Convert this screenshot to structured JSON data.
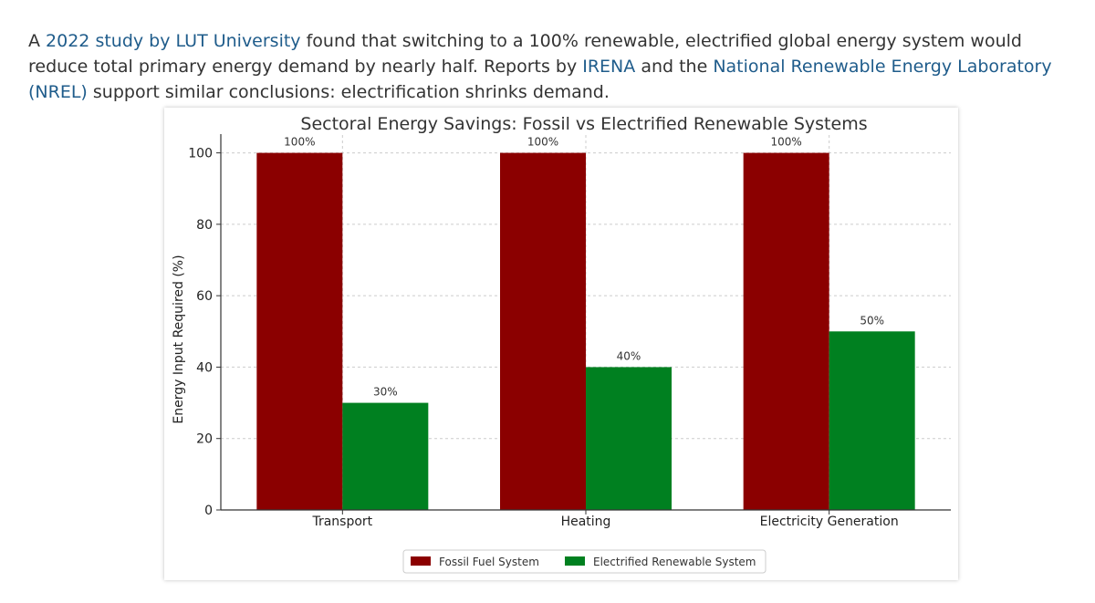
{
  "paragraph": {
    "t1": "A ",
    "link1": "2022 study by LUT University",
    "t2": " found that switching to a 100% renewable, electrified global energy system would reduce total primary energy demand by nearly half. Reports by ",
    "link2": "IRENA",
    "t3": " and the ",
    "link3": "National Renewable Energy Laboratory (NREL)",
    "t4": " support similar conclusions: electrification shrinks demand."
  },
  "colors": {
    "link": "#1f5c8b",
    "fossil": "#8b0000",
    "renewable": "#008020"
  },
  "chart_data": {
    "type": "bar",
    "title": "Sectoral Energy Savings: Fossil vs Electrified Renewable Systems",
    "xlabel": "",
    "ylabel": "Energy Input Required (%)",
    "ylim": [
      0,
      105
    ],
    "yticks": [
      0,
      20,
      40,
      60,
      80,
      100
    ],
    "grid": true,
    "legend_position": "bottom",
    "categories": [
      "Transport",
      "Heating",
      "Electricity Generation"
    ],
    "series": [
      {
        "name": "Fossil Fuel System",
        "values": [
          100,
          100,
          100
        ],
        "labels": [
          "100%",
          "100%",
          "100%"
        ],
        "color": "#8b0000"
      },
      {
        "name": "Electrified Renewable System",
        "values": [
          30,
          40,
          50
        ],
        "labels": [
          "30%",
          "40%",
          "50%"
        ],
        "color": "#008020"
      }
    ]
  }
}
